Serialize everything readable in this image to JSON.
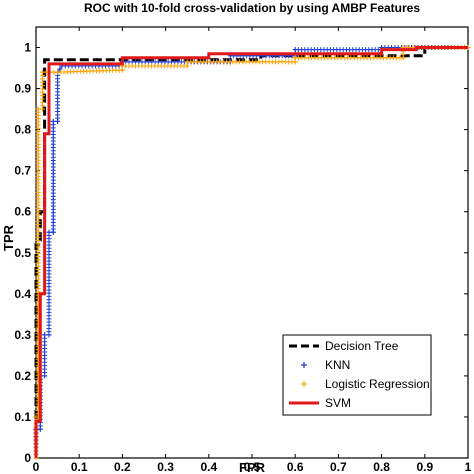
{
  "chart_data": {
    "type": "line",
    "title": "ROC with 10-fold cross-validation by using AMBP Features",
    "xlabel": "FPR",
    "ylabel": "TPR",
    "xlim": [
      0,
      1
    ],
    "ylim": [
      0,
      1.05
    ],
    "xticks": [
      "0",
      "0.1",
      "0.2",
      "0.3",
      "0.4",
      "0.5",
      "0.6",
      "0.7",
      "0.8",
      "0.9",
      "1"
    ],
    "yticks": [
      "0",
      "0.1",
      "0.2",
      "0.3",
      "0.4",
      "0.5",
      "0.6",
      "0.7",
      "0.8",
      "0.9",
      "1"
    ],
    "grid": false,
    "legend_position": "bottom-right",
    "series": [
      {
        "name": "Decision Tree",
        "style": "dashed",
        "color": "#000000",
        "x": [
          0,
          0,
          0.01,
          0.01,
          0.02,
          0.02,
          0.2,
          0.5,
          0.5,
          0.52,
          0.52,
          0.9,
          0.9,
          1
        ],
        "y": [
          0,
          0.52,
          0.52,
          0.6,
          0.6,
          0.97,
          0.97,
          0.97,
          0.97,
          0.97,
          0.98,
          0.98,
          1,
          1
        ]
      },
      {
        "name": "KNN",
        "style": "plus-markers",
        "color": "#1f3fd6",
        "x": [
          0,
          0,
          0.01,
          0.01,
          0.02,
          0.02,
          0.03,
          0.03,
          0.04,
          0.04,
          0.05,
          0.05,
          0.06,
          0.2,
          0.2,
          0.45,
          0.45,
          0.6,
          0.6,
          0.8,
          0.8,
          1
        ],
        "y": [
          0,
          0.07,
          0.07,
          0.2,
          0.2,
          0.3,
          0.3,
          0.55,
          0.55,
          0.82,
          0.82,
          0.94,
          0.955,
          0.955,
          0.965,
          0.965,
          0.98,
          0.98,
          0.995,
          0.995,
          1,
          1
        ]
      },
      {
        "name": "Logistic Regression",
        "style": "plus-markers",
        "color": "#ff9f00",
        "x": [
          0,
          0,
          0.005,
          0.005,
          0.015,
          0.015,
          0.05,
          0.2,
          0.2,
          0.35,
          0.35,
          0.6,
          0.6,
          0.85,
          0.85,
          1
        ],
        "y": [
          0,
          0.1,
          0.1,
          0.85,
          0.85,
          0.94,
          0.94,
          0.945,
          0.955,
          0.955,
          0.965,
          0.965,
          0.975,
          0.975,
          1,
          1
        ]
      },
      {
        "name": "SVM",
        "style": "solid",
        "color": "#e01818",
        "x": [
          0,
          0,
          0.01,
          0.01,
          0.02,
          0.02,
          0.03,
          0.03,
          0.1,
          0.2,
          0.2,
          0.4,
          0.4,
          0.8,
          0.8,
          0.88,
          0.88,
          1
        ],
        "y": [
          0,
          0.09,
          0.09,
          0.4,
          0.4,
          0.79,
          0.79,
          0.96,
          0.96,
          0.96,
          0.975,
          0.975,
          0.985,
          0.985,
          0.995,
          0.995,
          1,
          1
        ]
      }
    ]
  }
}
